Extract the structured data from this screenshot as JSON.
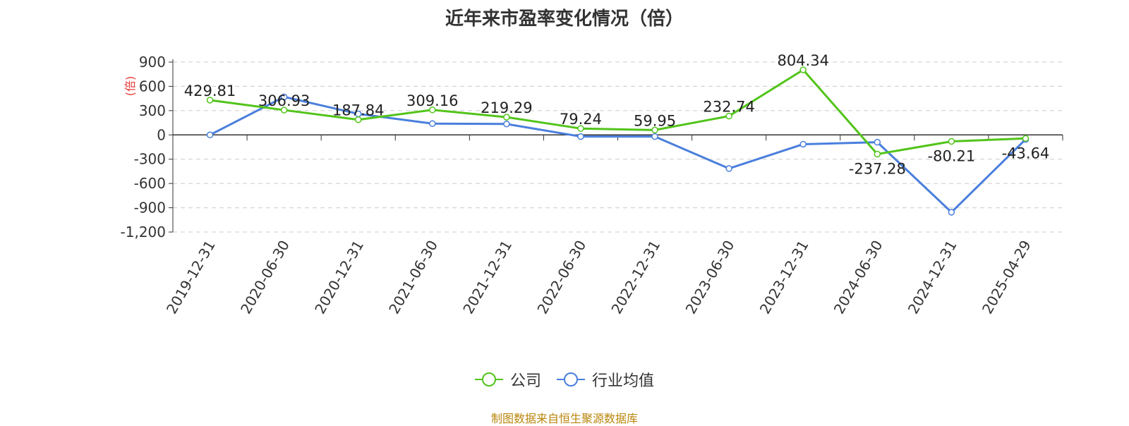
{
  "page": {
    "source": "制图数据来自恒生聚源数据库"
  },
  "chart_data": {
    "type": "line",
    "title": "近年来市盈率变化情况（倍）",
    "ylabel": "(倍)",
    "xlabel": "",
    "categories": [
      "2019-12-31",
      "2020-06-30",
      "2020-12-31",
      "2021-06-30",
      "2021-12-31",
      "2022-06-30",
      "2022-12-31",
      "2023-06-30",
      "2023-12-31",
      "2024-06-30",
      "2024-12-31",
      "2025-04-29"
    ],
    "ylim": [
      -1200,
      900
    ],
    "yticks": [
      900,
      600,
      300,
      0,
      -300,
      -600,
      -900,
      -1200
    ],
    "ytick_labels": [
      "900",
      "600",
      "300",
      "0",
      "-300",
      "-600",
      "-900",
      "-1,200"
    ],
    "grid": true,
    "legend_position": "bottom",
    "series": [
      {
        "name": "公司",
        "color": "#52c41a",
        "values": [
          429.81,
          306.93,
          187.84,
          309.16,
          219.29,
          79.24,
          59.95,
          232.74,
          804.34,
          -237.28,
          -80.21,
          -43.64
        ],
        "labels": [
          "429.81",
          "306.93",
          "187.84",
          "309.16",
          "219.29",
          "79.24",
          "59.95",
          "232.74",
          "804.34",
          "-237.28",
          "-80.21",
          "-43.64"
        ]
      },
      {
        "name": "行业均值",
        "color": "#4a7fdc",
        "values": [
          0,
          470,
          260,
          140,
          135,
          -20,
          -20,
          -415,
          -115,
          -90,
          -955,
          -55
        ]
      }
    ]
  }
}
